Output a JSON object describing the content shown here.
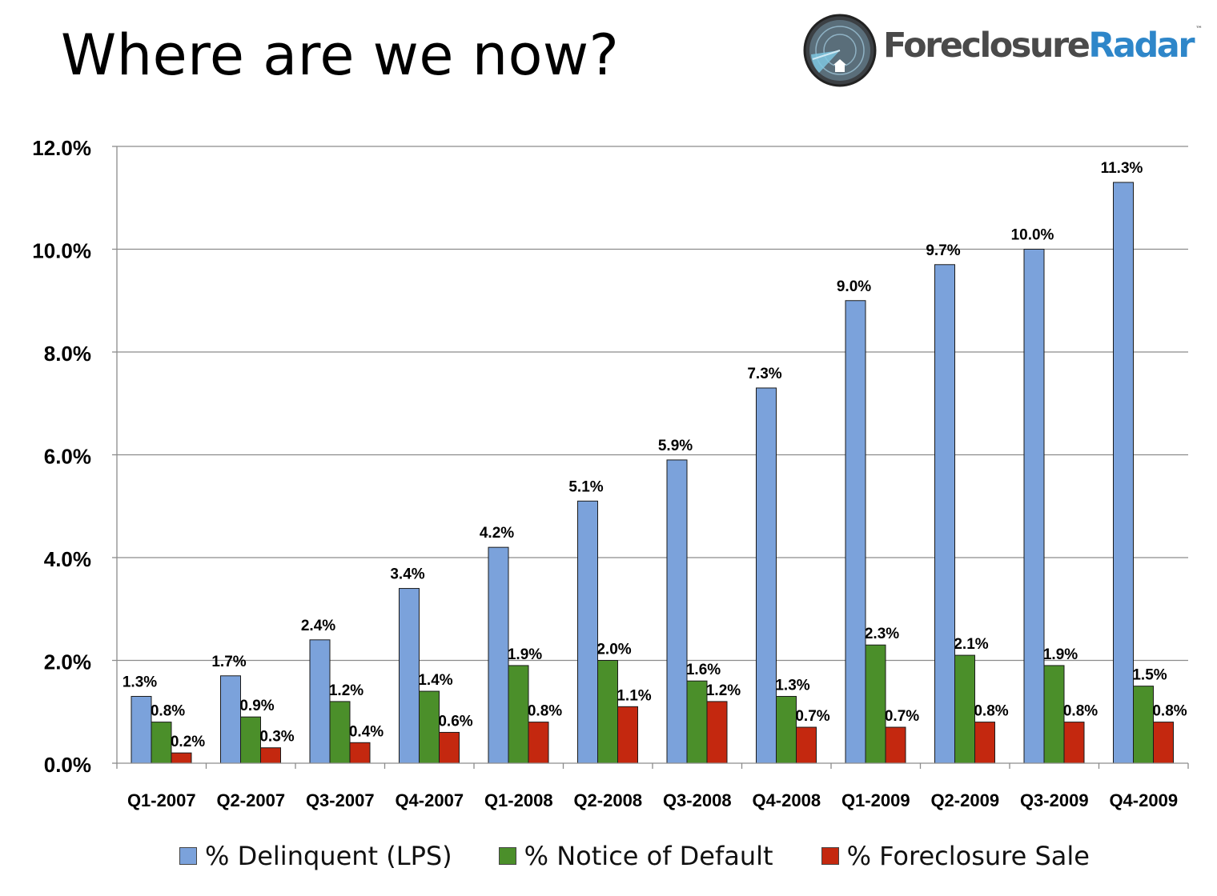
{
  "slide": {
    "title": "Where are we now?"
  },
  "logo": {
    "name_part1": "Foreclosure",
    "name_part2": "Radar",
    "trademark": "™"
  },
  "chart_data": {
    "type": "bar",
    "categories": [
      "Q1-2007",
      "Q2-2007",
      "Q3-2007",
      "Q4-2007",
      "Q1-2008",
      "Q2-2008",
      "Q3-2008",
      "Q4-2008",
      "Q1-2009",
      "Q2-2009",
      "Q3-2009",
      "Q4-2009"
    ],
    "series": [
      {
        "name": "% Delinquent (LPS)",
        "color": "#7ba2db",
        "values": [
          1.3,
          1.7,
          2.4,
          3.4,
          4.2,
          5.1,
          5.9,
          7.3,
          9.0,
          9.7,
          10.0,
          11.3
        ]
      },
      {
        "name": "% Notice of Default",
        "color": "#4b8f2a",
        "values": [
          0.8,
          0.9,
          1.2,
          1.4,
          1.9,
          2.0,
          1.6,
          1.3,
          2.3,
          2.1,
          1.9,
          1.5
        ]
      },
      {
        "name": "% Foreclosure Sale",
        "color": "#c4280f",
        "values": [
          0.2,
          0.3,
          0.4,
          0.6,
          0.8,
          1.1,
          1.2,
          0.7,
          0.7,
          0.8,
          0.8,
          0.8
        ]
      }
    ],
    "ylim": [
      0,
      12
    ],
    "yticks": [
      "0.0%",
      "2.0%",
      "4.0%",
      "6.0%",
      "8.0%",
      "10.0%",
      "12.0%"
    ],
    "grid": true,
    "legend_position": "bottom",
    "data_label_suffix": "%"
  }
}
